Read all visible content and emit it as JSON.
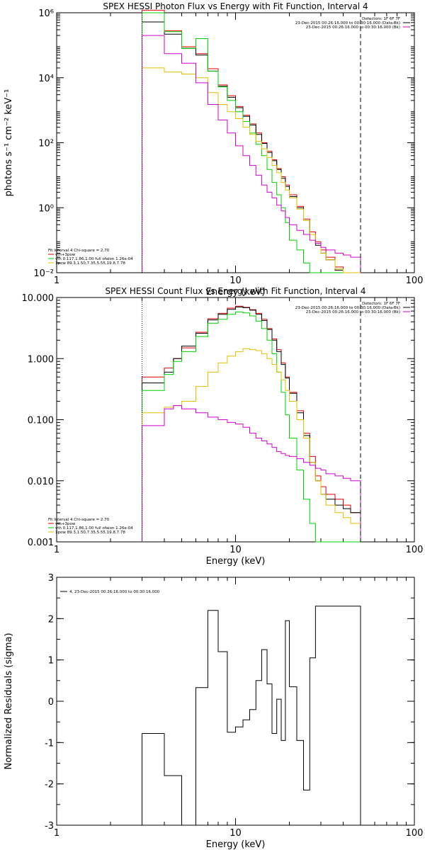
{
  "colors": {
    "data": "#000000",
    "total": "#e00000",
    "thermal": "#00d000",
    "nonthermal": "#e0c000",
    "background": "#d000d0"
  },
  "chart_data": [
    {
      "type": "line",
      "step": true,
      "title": "SPEX HESSI Photon Flux vs Energy with Fit Function, Interval 4",
      "xlabel": "Energy (keV)",
      "ylabel": "photons s⁻¹ cm⁻² keV⁻¹",
      "xscale": "log",
      "yscale": "log",
      "xlim": [
        1,
        100
      ],
      "ylim": [
        0.01,
        1000000
      ],
      "xticks": [
        1,
        10,
        100
      ],
      "xtick_labels": [
        "1",
        "10",
        "100"
      ],
      "yticks": [
        0.01,
        1,
        100,
        10000,
        1000000
      ],
      "ytick_labels": [
        "10⁻²",
        "10⁰",
        "10²",
        "10⁴",
        "10⁶"
      ],
      "vlines": [
        {
          "x": 3,
          "style": "dotted"
        },
        {
          "x": 50,
          "style": "dashed"
        }
      ],
      "legend_top": [
        "Detectors: 1F 6F 7F",
        "23-Dec-2015 00:26:16.000 to 00:30:16.000 (Data-Bk)",
        "23-Dec-2015 00:26:16.000 to 00:30:16.000 (Bk)"
      ],
      "legend_top_colors": [
        "",
        "data",
        "background"
      ],
      "legend_bottom": [
        "Fit Interval 4   Chi-square = 2.70",
        "vth+3pow",
        "vth 0.117,1.86,1.00  full ofaion 1.26e-04",
        "3pow 89.3,1.50,7.35,5.55,19.8,7.78"
      ],
      "legend_bottom_colors": [
        "",
        "total",
        "thermal",
        "nonthermal"
      ],
      "edges": [
        3,
        3.5,
        4,
        4.5,
        5,
        6,
        7,
        8,
        9,
        10,
        11,
        12,
        13,
        14,
        15,
        16,
        17,
        18,
        19,
        20,
        22,
        24,
        26,
        28,
        30,
        32,
        36,
        40,
        44,
        50
      ],
      "series": [
        {
          "color": "total",
          "values": [
            1200000,
            1200000,
            280000,
            280000,
            90000,
            55000,
            19000,
            6000,
            2800,
            1300,
            700,
            380,
            200,
            100,
            55,
            30,
            16,
            9,
            5,
            2.5,
            1.1,
            0.45,
            0.18,
            0.09,
            0.05,
            0.03,
            0.015,
            0.01,
            0.01
          ]
        },
        {
          "color": "data",
          "values": [
            520000,
            520000,
            220000,
            220000,
            80000,
            50000,
            16000,
            5500,
            2500,
            1200,
            650,
            350,
            180,
            95,
            50,
            28,
            15,
            8,
            4.5,
            2.2,
            1,
            0.4,
            0.15,
            0.07,
            0.04,
            0.025,
            0.012,
            0.01,
            0.01
          ]
        },
        {
          "color": "thermal",
          "values": [
            1000000,
            1000000,
            260000,
            260000,
            80000,
            160000,
            16000,
            5200,
            2000,
            900,
            450,
            200,
            90,
            40,
            15,
            6,
            2.5,
            1,
            0.35,
            0.1,
            0.05,
            0.02,
            0.01,
            0.01,
            0.01,
            0.01,
            0.01,
            0.01,
            0.01
          ]
        },
        {
          "color": "nonthermal",
          "values": [
            20000,
            20000,
            15000,
            15000,
            13000,
            10000,
            3500,
            1500,
            900,
            550,
            300,
            180,
            110,
            65,
            35,
            20,
            12,
            6,
            3.5,
            2,
            0.9,
            0.4,
            0.15,
            0.08,
            0.04,
            0.025,
            0.013,
            0.01,
            0.01
          ]
        },
        {
          "color": "background",
          "values": [
            200000,
            200000,
            55000,
            55000,
            28000,
            7000,
            1500,
            500,
            200,
            80,
            40,
            20,
            10,
            5,
            3,
            2,
            1.2,
            0.8,
            0.5,
            0.3,
            0.2,
            0.15,
            0.1,
            0.08,
            0.06,
            0.05,
            0.04,
            0.035,
            0.03
          ]
        }
      ]
    },
    {
      "type": "line",
      "step": true,
      "title": "SPEX HESSI Count Flux vs Energy with Fit Function, Interval 4",
      "xlabel": "Energy (keV)",
      "ylabel": "",
      "xscale": "log",
      "yscale": "log",
      "xlim": [
        1,
        100
      ],
      "ylim": [
        0.001,
        10
      ],
      "xticks": [
        1,
        10,
        100
      ],
      "xtick_labels": [
        "1",
        "10",
        "100"
      ],
      "yticks": [
        0.001,
        0.01,
        0.1,
        1,
        10
      ],
      "ytick_labels": [
        "0.001",
        "0.010",
        "0.100",
        "1.000",
        "10.000"
      ],
      "vlines": [
        {
          "x": 3,
          "style": "dotted"
        },
        {
          "x": 50,
          "style": "dashed"
        }
      ],
      "legend_top": [
        "Detectors: 1F 6F 7F",
        "23-Dec-2015 00:26:16.000 to 00:30:16.000 (Data-Bk)",
        "23-Dec-2015 00:26:16.000 to 00:30:16.000 (Bk)"
      ],
      "legend_top_colors": [
        "",
        "data",
        "background"
      ],
      "legend_bottom": [
        "Fit Interval 4   Chi-square = 2.70",
        "vth+3pow",
        "vth 0.117,1.86,1.00  full ofaion 1.26e-04",
        "3pow 89.3,1.50,7.35,5.55,19.8,7.78"
      ],
      "legend_bottom_colors": [
        "",
        "total",
        "thermal",
        "nonthermal"
      ],
      "edges": [
        3,
        3.5,
        4,
        4.5,
        5,
        6,
        7,
        8,
        9,
        10,
        11,
        12,
        13,
        14,
        15,
        16,
        17,
        18,
        19,
        20,
        22,
        24,
        26,
        28,
        30,
        32,
        36,
        40,
        44,
        50
      ],
      "series": [
        {
          "color": "total",
          "values": [
            0.5,
            0.5,
            0.7,
            1.0,
            1.5,
            2.7,
            4.5,
            5.5,
            6.7,
            7.2,
            6.9,
            6.3,
            5.5,
            4.4,
            3.1,
            2.1,
            1.4,
            0.85,
            0.5,
            0.28,
            0.14,
            0.06,
            0.025,
            0.012,
            0.008,
            0.006,
            0.005,
            0.004,
            0.003
          ]
        },
        {
          "color": "data",
          "values": [
            0.4,
            0.4,
            0.6,
            1.0,
            1.6,
            2.6,
            4.3,
            5.3,
            6.4,
            7.0,
            6.8,
            6.2,
            5.3,
            4.2,
            3.0,
            2.0,
            1.3,
            0.8,
            0.48,
            0.27,
            0.13,
            0.055,
            0.02,
            0.01,
            0.006,
            0.005,
            0.004,
            0.0035,
            0.003
          ]
        },
        {
          "color": "thermal",
          "values": [
            0.3,
            0.3,
            0.55,
            0.9,
            1.3,
            2.3,
            3.8,
            4.4,
            5.3,
            5.8,
            5.6,
            5.0,
            4.1,
            3.1,
            2.0,
            1.2,
            0.6,
            0.28,
            0.12,
            0.05,
            0.015,
            0.005,
            0.002,
            0.001,
            0.001,
            0.001,
            0.001,
            0.001,
            0.001
          ]
        },
        {
          "color": "nonthermal",
          "values": [
            0.13,
            0.13,
            0.16,
            0.17,
            0.2,
            0.35,
            0.6,
            0.85,
            1.1,
            1.3,
            1.45,
            1.4,
            1.35,
            1.2,
            1.0,
            0.8,
            0.6,
            0.45,
            0.3,
            0.2,
            0.1,
            0.05,
            0.02,
            0.01,
            0.006,
            0.004,
            0.003,
            0.0025,
            0.002
          ]
        },
        {
          "color": "background",
          "values": [
            0.08,
            0.08,
            0.15,
            0.17,
            0.15,
            0.13,
            0.11,
            0.1,
            0.09,
            0.085,
            0.075,
            0.06,
            0.05,
            0.045,
            0.04,
            0.035,
            0.03,
            0.028,
            0.026,
            0.025,
            0.023,
            0.02,
            0.018,
            0.016,
            0.015,
            0.013,
            0.012,
            0.011,
            0.01
          ]
        }
      ]
    },
    {
      "type": "line",
      "step": true,
      "title": "",
      "xlabel": "Energy (keV)",
      "ylabel": "Normalized Residuals (sigma)",
      "xscale": "log",
      "yscale": "linear",
      "xlim": [
        1,
        100
      ],
      "ylim": [
        -3,
        3
      ],
      "xticks": [
        1,
        10,
        100
      ],
      "xtick_labels": [
        "1",
        "10",
        "100"
      ],
      "yticks": [
        -3,
        -2,
        -1,
        0,
        1,
        2,
        3
      ],
      "ytick_labels": [
        "-3",
        "-2",
        "-1",
        "0",
        "1",
        "2",
        "3"
      ],
      "vlines": [],
      "legend_top": [
        "4, 23-Dec-2015 00:26:16.000 to 00:30:16.000"
      ],
      "legend_top_colors": [
        "data"
      ],
      "legend_bottom": [],
      "legend_bottom_colors": [],
      "edges": [
        3,
        4,
        5,
        6,
        7,
        8,
        9,
        10,
        11,
        12,
        13,
        14,
        15,
        16,
        17,
        18,
        19,
        20,
        22,
        24,
        26,
        28,
        30,
        32,
        36,
        40,
        44,
        50
      ],
      "series": [
        {
          "color": "data",
          "values": [
            -0.78,
            -1.8,
            -3.05,
            0.33,
            2.2,
            1.2,
            -0.75,
            -0.62,
            -0.45,
            -0.2,
            0.5,
            1.25,
            0.42,
            -0.78,
            0.05,
            -0.95,
            1.95,
            0.35,
            -0.95,
            -2.15,
            1.05,
            2.3,
            2.3,
            2.3,
            2.3,
            2.3,
            2.3
          ]
        }
      ]
    }
  ]
}
